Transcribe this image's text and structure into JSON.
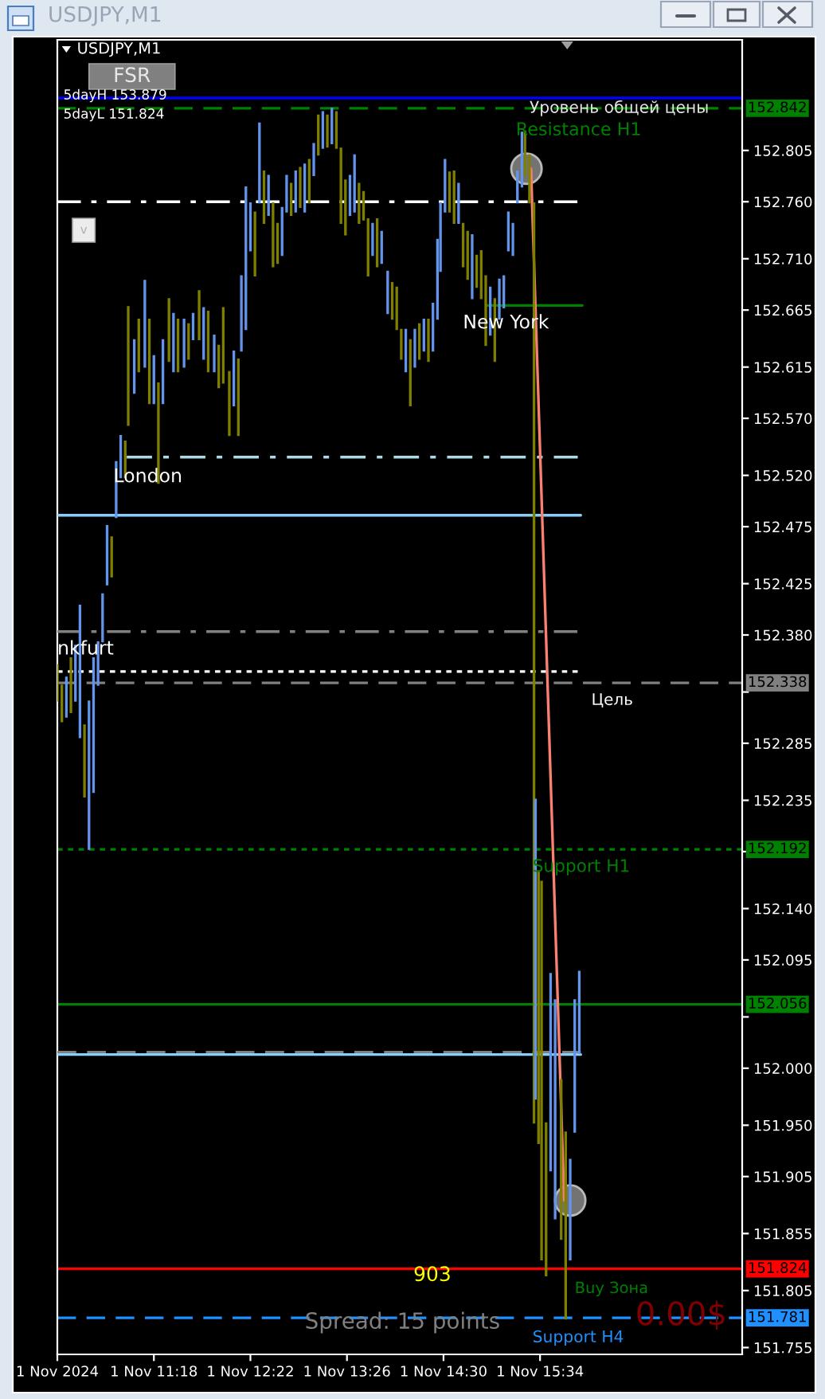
{
  "chart_data": {
    "type": "candlestick",
    "title": "USDJPY,M1",
    "subtitle": "USDJPY,M1",
    "x": [
      "2024-11-01T10:14",
      "2024-11-01T10:17",
      "2024-11-01T10:20",
      "2024-11-01T10:23",
      "2024-11-01T10:26",
      "2024-11-01T10:29",
      "2024-11-01T10:32",
      "2024-11-01T10:35",
      "2024-11-01T10:38",
      "2024-11-01T10:41",
      "2024-11-01T10:44",
      "2024-11-01T10:47",
      "2024-11-01T10:50",
      "2024-11-01T10:53",
      "2024-11-01T10:56",
      "2024-11-01T10:59",
      "2024-11-01T11:01",
      "2024-11-01T11:05",
      "2024-11-01T11:08",
      "2024-11-01T11:12",
      "2024-11-01T11:15",
      "2024-11-01T11:18",
      "2024-11-01T11:21",
      "2024-11-01T11:24",
      "2024-11-01T11:28",
      "2024-11-01T11:31",
      "2024-11-01T11:34",
      "2024-11-01T11:38",
      "2024-11-01T11:41",
      "2024-11-01T11:44",
      "2024-11-01T11:48",
      "2024-11-01T11:51",
      "2024-11-01T11:54",
      "2024-11-01T11:58",
      "2024-11-01T12:01",
      "2024-11-01T12:04",
      "2024-11-01T12:08",
      "2024-11-01T12:11",
      "2024-11-01T12:14",
      "2024-11-01T12:16",
      "2024-11-01T12:19",
      "2024-11-01T12:22",
      "2024-11-01T12:25",
      "2024-11-01T12:28",
      "2024-11-01T12:31",
      "2024-11-01T12:34",
      "2024-11-01T12:37",
      "2024-11-01T12:40",
      "2024-11-01T12:43",
      "2024-11-01T12:46",
      "2024-11-01T12:49",
      "2024-11-01T12:52",
      "2024-11-01T12:55",
      "2024-11-01T12:58",
      "2024-11-01T13:01",
      "2024-11-01T13:04",
      "2024-11-01T13:07",
      "2024-11-01T13:10",
      "2024-11-01T13:13",
      "2024-11-01T13:16",
      "2024-11-01T13:19",
      "2024-11-01T13:22",
      "2024-11-01T13:25",
      "2024-11-01T13:28",
      "2024-11-01T13:31",
      "2024-11-01T13:34",
      "2024-11-01T13:37",
      "2024-11-01T13:40",
      "2024-11-01T13:43",
      "2024-11-01T13:46",
      "2024-11-01T13:49",
      "2024-11-01T13:53",
      "2024-11-01T13:56",
      "2024-11-01T13:59",
      "2024-11-01T14:02",
      "2024-11-01T14:05",
      "2024-11-01T14:08",
      "2024-11-01T14:11",
      "2024-11-01T14:14",
      "2024-11-01T14:17",
      "2024-11-01T14:20",
      "2024-11-01T14:23",
      "2024-11-01T14:26",
      "2024-11-01T14:28",
      "2024-11-01T14:31",
      "2024-11-01T14:34",
      "2024-11-01T14:37",
      "2024-11-01T14:40",
      "2024-11-01T14:43",
      "2024-11-01T14:46",
      "2024-11-01T14:49",
      "2024-11-01T14:52",
      "2024-11-01T14:55",
      "2024-11-01T14:58",
      "2024-11-01T15:01",
      "2024-11-01T15:04",
      "2024-11-01T15:07",
      "2024-11-01T15:10",
      "2024-11-01T15:13",
      "2024-11-01T15:16",
      "2024-11-01T15:19",
      "2024-11-01T15:22",
      "2024-11-01T15:24",
      "2024-11-01T15:27",
      "2024-11-01T15:30",
      "2024-11-01T15:31",
      "2024-11-01T15:33",
      "2024-11-01T15:35",
      "2024-11-01T15:38",
      "2024-11-01T15:41",
      "2024-11-01T15:44",
      "2024-11-01T15:48",
      "2024-11-01T15:51",
      "2024-11-01T15:54",
      "2024-11-01T15:57",
      "2024-11-01T16:00"
    ],
    "ohlc": [
      [
        152.354,
        152.354,
        152.322,
        152.322
      ],
      [
        152.336,
        152.336,
        152.304,
        152.304
      ],
      [
        152.308,
        152.343,
        152.308,
        152.343
      ],
      [
        152.36,
        152.36,
        152.312,
        152.312
      ],
      [
        152.322,
        152.371,
        152.322,
        152.371
      ],
      [
        152.29,
        152.406,
        152.29,
        152.406
      ],
      [
        152.301,
        152.301,
        152.238,
        152.238
      ],
      [
        152.192,
        152.322,
        152.192,
        152.322
      ],
      [
        152.242,
        152.36,
        152.242,
        152.36
      ],
      [
        152.336,
        152.374,
        152.336,
        152.374
      ],
      [
        152.374,
        152.416,
        152.374,
        152.416
      ],
      [
        152.424,
        152.476,
        152.424,
        152.476
      ],
      [
        152.466,
        152.466,
        152.431,
        152.431
      ],
      [
        152.483,
        152.532,
        152.483,
        152.532
      ],
      [
        152.518,
        152.555,
        152.518,
        152.555
      ],
      [
        152.55,
        152.55,
        152.518,
        152.518
      ],
      [
        152.668,
        152.668,
        152.564,
        152.564
      ],
      [
        152.592,
        152.639,
        152.592,
        152.639
      ],
      [
        152.657,
        152.657,
        152.611,
        152.611
      ],
      [
        152.615,
        152.691,
        152.615,
        152.691
      ],
      [
        152.657,
        152.657,
        152.583,
        152.583
      ],
      [
        152.583,
        152.625,
        152.583,
        152.625
      ],
      [
        152.601,
        152.601,
        152.513,
        152.513
      ],
      [
        152.583,
        152.639,
        152.583,
        152.639
      ],
      [
        152.675,
        152.675,
        152.62,
        152.62
      ],
      [
        152.611,
        152.662,
        152.611,
        152.662
      ],
      [
        152.657,
        152.657,
        152.611,
        152.611
      ],
      [
        152.615,
        152.657,
        152.615,
        152.657
      ],
      [
        152.653,
        152.653,
        152.622,
        152.622
      ],
      [
        152.639,
        152.662,
        152.639,
        152.662
      ],
      [
        152.682,
        152.682,
        152.639,
        152.639
      ],
      [
        152.622,
        152.667,
        152.622,
        152.667
      ],
      [
        152.664,
        152.664,
        152.611,
        152.611
      ],
      [
        152.611,
        152.643,
        152.611,
        152.643
      ],
      [
        152.634,
        152.634,
        152.597,
        152.597
      ],
      [
        152.667,
        152.667,
        152.601,
        152.601
      ],
      [
        152.611,
        152.611,
        152.555,
        152.555
      ],
      [
        152.581,
        152.629,
        152.581,
        152.629
      ],
      [
        152.622,
        152.622,
        152.555,
        152.555
      ],
      [
        152.629,
        152.695,
        152.629,
        152.695
      ],
      [
        152.648,
        152.773,
        152.648,
        152.773
      ],
      [
        152.717,
        152.759,
        152.717,
        152.759
      ],
      [
        152.751,
        152.751,
        152.695,
        152.695
      ],
      [
        152.759,
        152.829,
        152.759,
        152.829
      ],
      [
        152.787,
        152.787,
        152.741,
        152.741
      ],
      [
        152.748,
        152.783,
        152.748,
        152.783
      ],
      [
        152.759,
        152.759,
        152.703,
        152.703
      ],
      [
        152.741,
        152.741,
        152.706,
        152.706
      ],
      [
        152.713,
        152.755,
        152.713,
        152.755
      ],
      [
        152.751,
        152.783,
        152.751,
        152.783
      ],
      [
        152.776,
        152.776,
        152.748,
        152.748
      ],
      [
        152.751,
        152.787,
        152.751,
        152.787
      ],
      [
        152.79,
        152.79,
        152.755,
        152.755
      ],
      [
        152.751,
        152.793,
        152.751,
        152.793
      ],
      [
        152.797,
        152.797,
        152.759,
        152.759
      ],
      [
        152.783,
        152.811,
        152.783,
        152.811
      ],
      [
        152.836,
        152.836,
        152.801,
        152.801
      ],
      [
        152.807,
        152.839,
        152.807,
        152.839
      ],
      [
        152.836,
        152.836,
        152.808,
        152.808
      ],
      [
        152.811,
        152.842,
        152.811,
        152.842
      ],
      [
        152.839,
        152.839,
        152.807,
        152.807
      ],
      [
        152.807,
        152.807,
        152.741,
        152.741
      ],
      [
        152.779,
        152.779,
        152.731,
        152.731
      ],
      [
        152.748,
        152.783,
        152.748,
        152.783
      ],
      [
        152.751,
        152.801,
        152.751,
        152.801
      ],
      [
        152.776,
        152.776,
        152.741,
        152.741
      ],
      [
        152.769,
        152.769,
        152.744,
        152.744
      ],
      [
        152.745,
        152.745,
        152.695,
        152.695
      ],
      [
        152.713,
        152.741,
        152.713,
        152.741
      ],
      [
        152.745,
        152.745,
        152.703,
        152.703
      ],
      [
        152.706,
        152.734,
        152.706,
        152.734
      ],
      [
        152.662,
        152.699,
        152.662,
        152.699
      ],
      [
        152.689,
        152.689,
        152.657,
        152.657
      ],
      [
        152.685,
        152.685,
        152.648,
        152.648
      ],
      [
        152.648,
        152.648,
        152.622,
        152.622
      ],
      [
        152.611,
        152.648,
        152.611,
        152.648
      ],
      [
        152.639,
        152.639,
        152.581,
        152.581
      ],
      [
        152.615,
        152.648,
        152.615,
        152.648
      ],
      [
        152.653,
        152.653,
        152.622,
        152.622
      ],
      [
        152.629,
        152.657,
        152.629,
        152.657
      ],
      [
        152.657,
        152.657,
        152.62,
        152.62
      ],
      [
        152.629,
        152.671,
        152.629,
        152.671
      ],
      [
        152.657,
        152.727,
        152.657,
        152.727
      ],
      [
        152.699,
        152.759,
        152.699,
        152.759
      ],
      [
        152.751,
        152.797,
        152.751,
        152.797
      ],
      [
        152.786,
        152.786,
        152.751,
        152.751
      ],
      [
        152.787,
        152.787,
        152.741,
        152.741
      ],
      [
        152.741,
        152.776,
        152.741,
        152.776
      ],
      [
        152.741,
        152.741,
        152.703,
        152.703
      ],
      [
        152.734,
        152.734,
        152.692,
        152.692
      ],
      [
        152.675,
        152.731,
        152.675,
        152.731
      ],
      [
        152.713,
        152.713,
        152.685,
        152.685
      ],
      [
        152.717,
        152.717,
        152.675,
        152.675
      ],
      [
        152.695,
        152.695,
        152.634,
        152.634
      ],
      [
        152.643,
        152.685,
        152.643,
        152.685
      ],
      [
        152.675,
        152.675,
        152.62,
        152.62
      ],
      [
        152.657,
        152.692,
        152.657,
        152.692
      ],
      [
        152.667,
        152.695,
        152.667,
        152.695
      ],
      [
        152.717,
        152.751,
        152.717,
        152.751
      ],
      [
        152.713,
        152.741,
        152.713,
        152.741
      ],
      [
        152.759,
        152.787,
        152.759,
        152.787
      ],
      [
        152.773,
        152.821,
        152.773,
        152.821
      ],
      [
        152.822,
        152.822,
        152.783,
        152.783
      ],
      [
        152.801,
        152.801,
        152.759,
        152.759
      ],
      [
        152.759,
        152.759,
        151.952,
        151.952
      ],
      [
        151.973,
        152.236,
        151.973,
        152.236
      ],
      [
        152.173,
        152.173,
        151.934,
        151.934
      ],
      [
        152.164,
        152.164,
        151.832,
        151.832
      ],
      [
        151.952,
        151.952,
        151.818,
        151.818
      ],
      [
        151.91,
        152.083,
        151.91,
        152.083
      ],
      [
        151.868,
        152.06,
        151.868,
        152.06
      ],
      [
        151.99,
        151.99,
        151.85,
        151.85
      ],
      [
        151.944,
        151.944,
        151.78,
        151.78
      ],
      [
        151.832,
        151.92,
        151.832,
        151.92
      ],
      [
        151.944,
        152.06,
        151.944,
        152.06
      ],
      [
        152.013,
        152.085,
        152.013,
        152.085
      ]
    ],
    "colors": [
      "#808000",
      "#808000",
      "#6495ed",
      "#808000",
      "#6495ed",
      "#6495ed",
      "#808000",
      "#6495ed",
      "#6495ed",
      "#6495ed",
      "#6495ed",
      "#6495ed",
      "#808000",
      "#6495ed",
      "#6495ed",
      "#808000",
      "#808000",
      "#6495ed",
      "#808000",
      "#6495ed",
      "#808000",
      "#6495ed",
      "#808000",
      "#6495ed",
      "#808000",
      "#6495ed",
      "#808000",
      "#6495ed",
      "#808000",
      "#6495ed",
      "#808000",
      "#6495ed",
      "#808000",
      "#6495ed",
      "#808000",
      "#808000",
      "#808000",
      "#6495ed",
      "#808000",
      "#6495ed",
      "#6495ed",
      "#6495ed",
      "#808000",
      "#6495ed",
      "#808000",
      "#6495ed",
      "#808000",
      "#808000",
      "#6495ed",
      "#6495ed",
      "#808000",
      "#6495ed",
      "#808000",
      "#6495ed",
      "#808000",
      "#6495ed",
      "#808000",
      "#6495ed",
      "#808000",
      "#6495ed",
      "#808000",
      "#808000",
      "#808000",
      "#6495ed",
      "#6495ed",
      "#808000",
      "#808000",
      "#808000",
      "#6495ed",
      "#808000",
      "#6495ed",
      "#6495ed",
      "#808000",
      "#808000",
      "#808000",
      "#6495ed",
      "#808000",
      "#6495ed",
      "#808000",
      "#6495ed",
      "#808000",
      "#6495ed",
      "#6495ed",
      "#6495ed",
      "#6495ed",
      "#808000",
      "#808000",
      "#6495ed",
      "#808000",
      "#808000",
      "#6495ed",
      "#808000",
      "#808000",
      "#808000",
      "#6495ed",
      "#808000",
      "#6495ed",
      "#6495ed",
      "#6495ed",
      "#6495ed",
      "#6495ed",
      "#6495ed",
      "#808000",
      "#808000",
      "#808000",
      "#6495ed",
      "#808000",
      "#808000",
      "#808000",
      "#6495ed",
      "#6495ed",
      "#808000",
      "#808000",
      "#6495ed",
      "#6495ed",
      "#6495ed"
    ],
    "series": [
      {
        "type": "line",
        "x": [
          "2024-11-01T10:14",
          "2024-11-01T15:59"
        ],
        "values": [
          152.76,
          152.76
        ],
        "color": "#ffffff",
        "line_style": "dashdot"
      },
      {
        "type": "line",
        "x": [
          "2024-11-01T14:59",
          "2024-11-01T16:02"
        ],
        "values": [
          152.669,
          152.669
        ],
        "color": "#008000",
        "line_style": "solid"
      },
      {
        "type": "line",
        "x": [
          "2024-11-01T11:00",
          "2024-11-01T15:59"
        ],
        "values": [
          152.536,
          152.536
        ],
        "color": "#add8e6",
        "line_style": "dashdot"
      },
      {
        "type": "line",
        "x": [
          "2024-11-01T10:14",
          "2024-11-01T16:01"
        ],
        "values": [
          152.485,
          152.485
        ],
        "color": "#87cefa",
        "line_style": "solid"
      },
      {
        "type": "line",
        "x": [
          "2024-11-01T10:14",
          "2024-11-01T15:59"
        ],
        "values": [
          152.383,
          152.383
        ],
        "color": "#808080",
        "line_style": "dashdot"
      },
      {
        "type": "line",
        "x": [
          "2024-11-01T10:14",
          "2024-11-01T15:59"
        ],
        "values": [
          152.348,
          152.348
        ],
        "color": "#ffffff",
        "line_style": "dotted"
      },
      {
        "type": "line",
        "x": [
          "2024-11-01T10:14",
          "2024-11-01T16:01"
        ],
        "values": [
          152.014,
          152.014
        ],
        "color": "#808080",
        "line_style": "dashed"
      },
      {
        "type": "line",
        "x": [
          "2024-11-01T10:14",
          "2024-11-01T16:01"
        ],
        "values": [
          152.012,
          152.012
        ],
        "color": "#87cefa",
        "line_style": "solid"
      },
      {
        "type": "line",
        "x": [
          "2024-11-01T15:28",
          "2024-11-01T15:50"
        ],
        "values": [
          152.789,
          151.884
        ],
        "color": "#fa8072",
        "line_style": "solid"
      },
      {
        "type": "scatter",
        "x": [
          "2024-11-01T15:25",
          "2024-11-01T15:54"
        ],
        "values": [
          152.789,
          151.884
        ],
        "color": "#808080",
        "marker": "circle"
      }
    ],
    "ref_lines": [
      {
        "axis": "y",
        "value": 152.851,
        "color": "#0000ff",
        "line_style": "solid"
      },
      {
        "axis": "y",
        "value": 152.842,
        "label": "152.842",
        "color": "#008000",
        "line_style": "dashed"
      },
      {
        "axis": "y",
        "value": 152.338,
        "label": "152.338",
        "color": "#808080",
        "line_style": "dashed"
      },
      {
        "axis": "y",
        "value": 152.192,
        "label": "152.192",
        "color": "#008000",
        "line_style": "dotted"
      },
      {
        "axis": "y",
        "value": 152.056,
        "label": "152.056",
        "color": "#008000",
        "line_style": "solid"
      },
      {
        "axis": "y",
        "value": 151.824,
        "label": "151.824",
        "color": "#ff0000",
        "line_style": "solid"
      },
      {
        "axis": "y",
        "value": 151.781,
        "label": "151.781",
        "color": "#1e90ff",
        "line_style": "dashed"
      }
    ],
    "annotations": [
      {
        "text": "Уровень общей цены",
        "x": "2024-11-01T15:27",
        "y": 152.842
      },
      {
        "text": "Resistance H1",
        "x": "2024-11-01T15:18",
        "y": 152.842
      },
      {
        "text": "New York",
        "x": "2024-11-01T14:59",
        "y": 152.669
      },
      {
        "text": "London",
        "x": "2024-11-01T11:00",
        "y": 152.536
      },
      {
        "text": "nkfurt",
        "x": "2024-11-01T10:14",
        "y": 152.383
      },
      {
        "text": "Цель",
        "x": "2024-11-01T16:08",
        "y": 152.338
      },
      {
        "text": "Support H1",
        "x": "2024-11-01T15:29",
        "y": 152.192
      },
      {
        "text": "903",
        "x": "2024-11-01T14:10",
        "y": 151.824
      },
      {
        "text": "Buy Зона",
        "x": "2024-11-01T15:57",
        "y": 151.824
      },
      {
        "text": "Support H4",
        "x": "2024-11-01T15:29",
        "y": 151.781
      },
      "5dayH 153.879",
      "5dayL 151.824",
      "FSR",
      "v",
      "Spread: 15 points",
      "0.00$"
    ],
    "xlim": [
      "2024-11-01T10:14",
      "2024-11-01T17:48"
    ],
    "xticks": [
      {
        "value": "2024-11-01T10:14",
        "label": "1 Nov 2024"
      },
      {
        "value": "2024-11-01T11:18",
        "label": "1 Nov 11:18"
      },
      {
        "value": "2024-11-01T12:22",
        "label": "1 Nov 12:22"
      },
      {
        "value": "2024-11-01T13:26",
        "label": "1 Nov 13:26"
      },
      {
        "value": "2024-11-01T14:30",
        "label": "1 Nov 14:30"
      },
      {
        "value": "2024-11-01T15:34",
        "label": "1 Nov 15:34"
      }
    ],
    "ylim": [
      151.749,
      152.902
    ],
    "yticks": [
      152.805,
      {
        "value": 152.76,
        "label": "152.760"
      },
      {
        "value": 152.71,
        "label": "152.710"
      },
      152.665,
      152.615,
      {
        "value": 152.57,
        "label": "152.570"
      },
      {
        "value": 152.52,
        "label": "152.520"
      },
      152.475,
      152.425,
      {
        "value": 152.38,
        "label": "152.380"
      },
      {
        "value": 152.33,
        "label": null
      },
      152.285,
      152.235,
      {
        "value": 152.19,
        "label": null
      },
      {
        "value": 152.14,
        "label": "152.140"
      },
      152.095,
      {
        "value": 152.045,
        "label": null
      },
      {
        "value": 152.0,
        "label": "152.000"
      },
      {
        "value": 151.95,
        "label": "151.950"
      },
      151.905,
      151.855,
      151.805,
      151.755
    ]
  }
}
